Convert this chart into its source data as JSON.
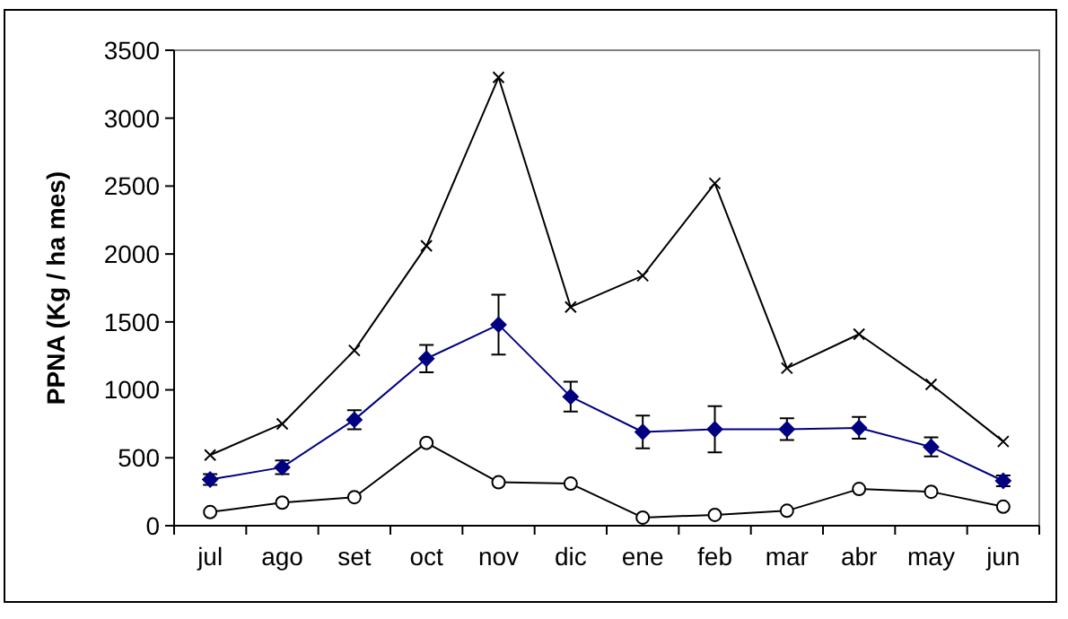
{
  "chart_data": {
    "type": "line",
    "ylabel": "PPNA (Kg / ha mes)",
    "categories": [
      "jul",
      "ago",
      "set",
      "oct",
      "nov",
      "dic",
      "ene",
      "feb",
      "mar",
      "abr",
      "may",
      "jun"
    ],
    "series": [
      {
        "color": "#000000",
        "marker": "cross",
        "values": [
          520,
          750,
          1290,
          2060,
          3300,
          1610,
          1840,
          2520,
          1160,
          1410,
          1040,
          620
        ]
      },
      {
        "color": "#000080",
        "marker": "diamond",
        "values": [
          340,
          430,
          780,
          1230,
          1480,
          950,
          690,
          710,
          710,
          720,
          580,
          330
        ],
        "errors": [
          40,
          50,
          70,
          100,
          220,
          110,
          120,
          170,
          80,
          80,
          70,
          40
        ]
      },
      {
        "color": "#000000",
        "marker": "circle",
        "values": [
          100,
          170,
          210,
          610,
          320,
          310,
          60,
          80,
          110,
          270,
          250,
          140
        ]
      }
    ],
    "ylim": [
      0,
      3500
    ],
    "yticks": [
      0,
      500,
      1000,
      1500,
      2000,
      2500,
      3000,
      3500
    ],
    "grid": false
  }
}
